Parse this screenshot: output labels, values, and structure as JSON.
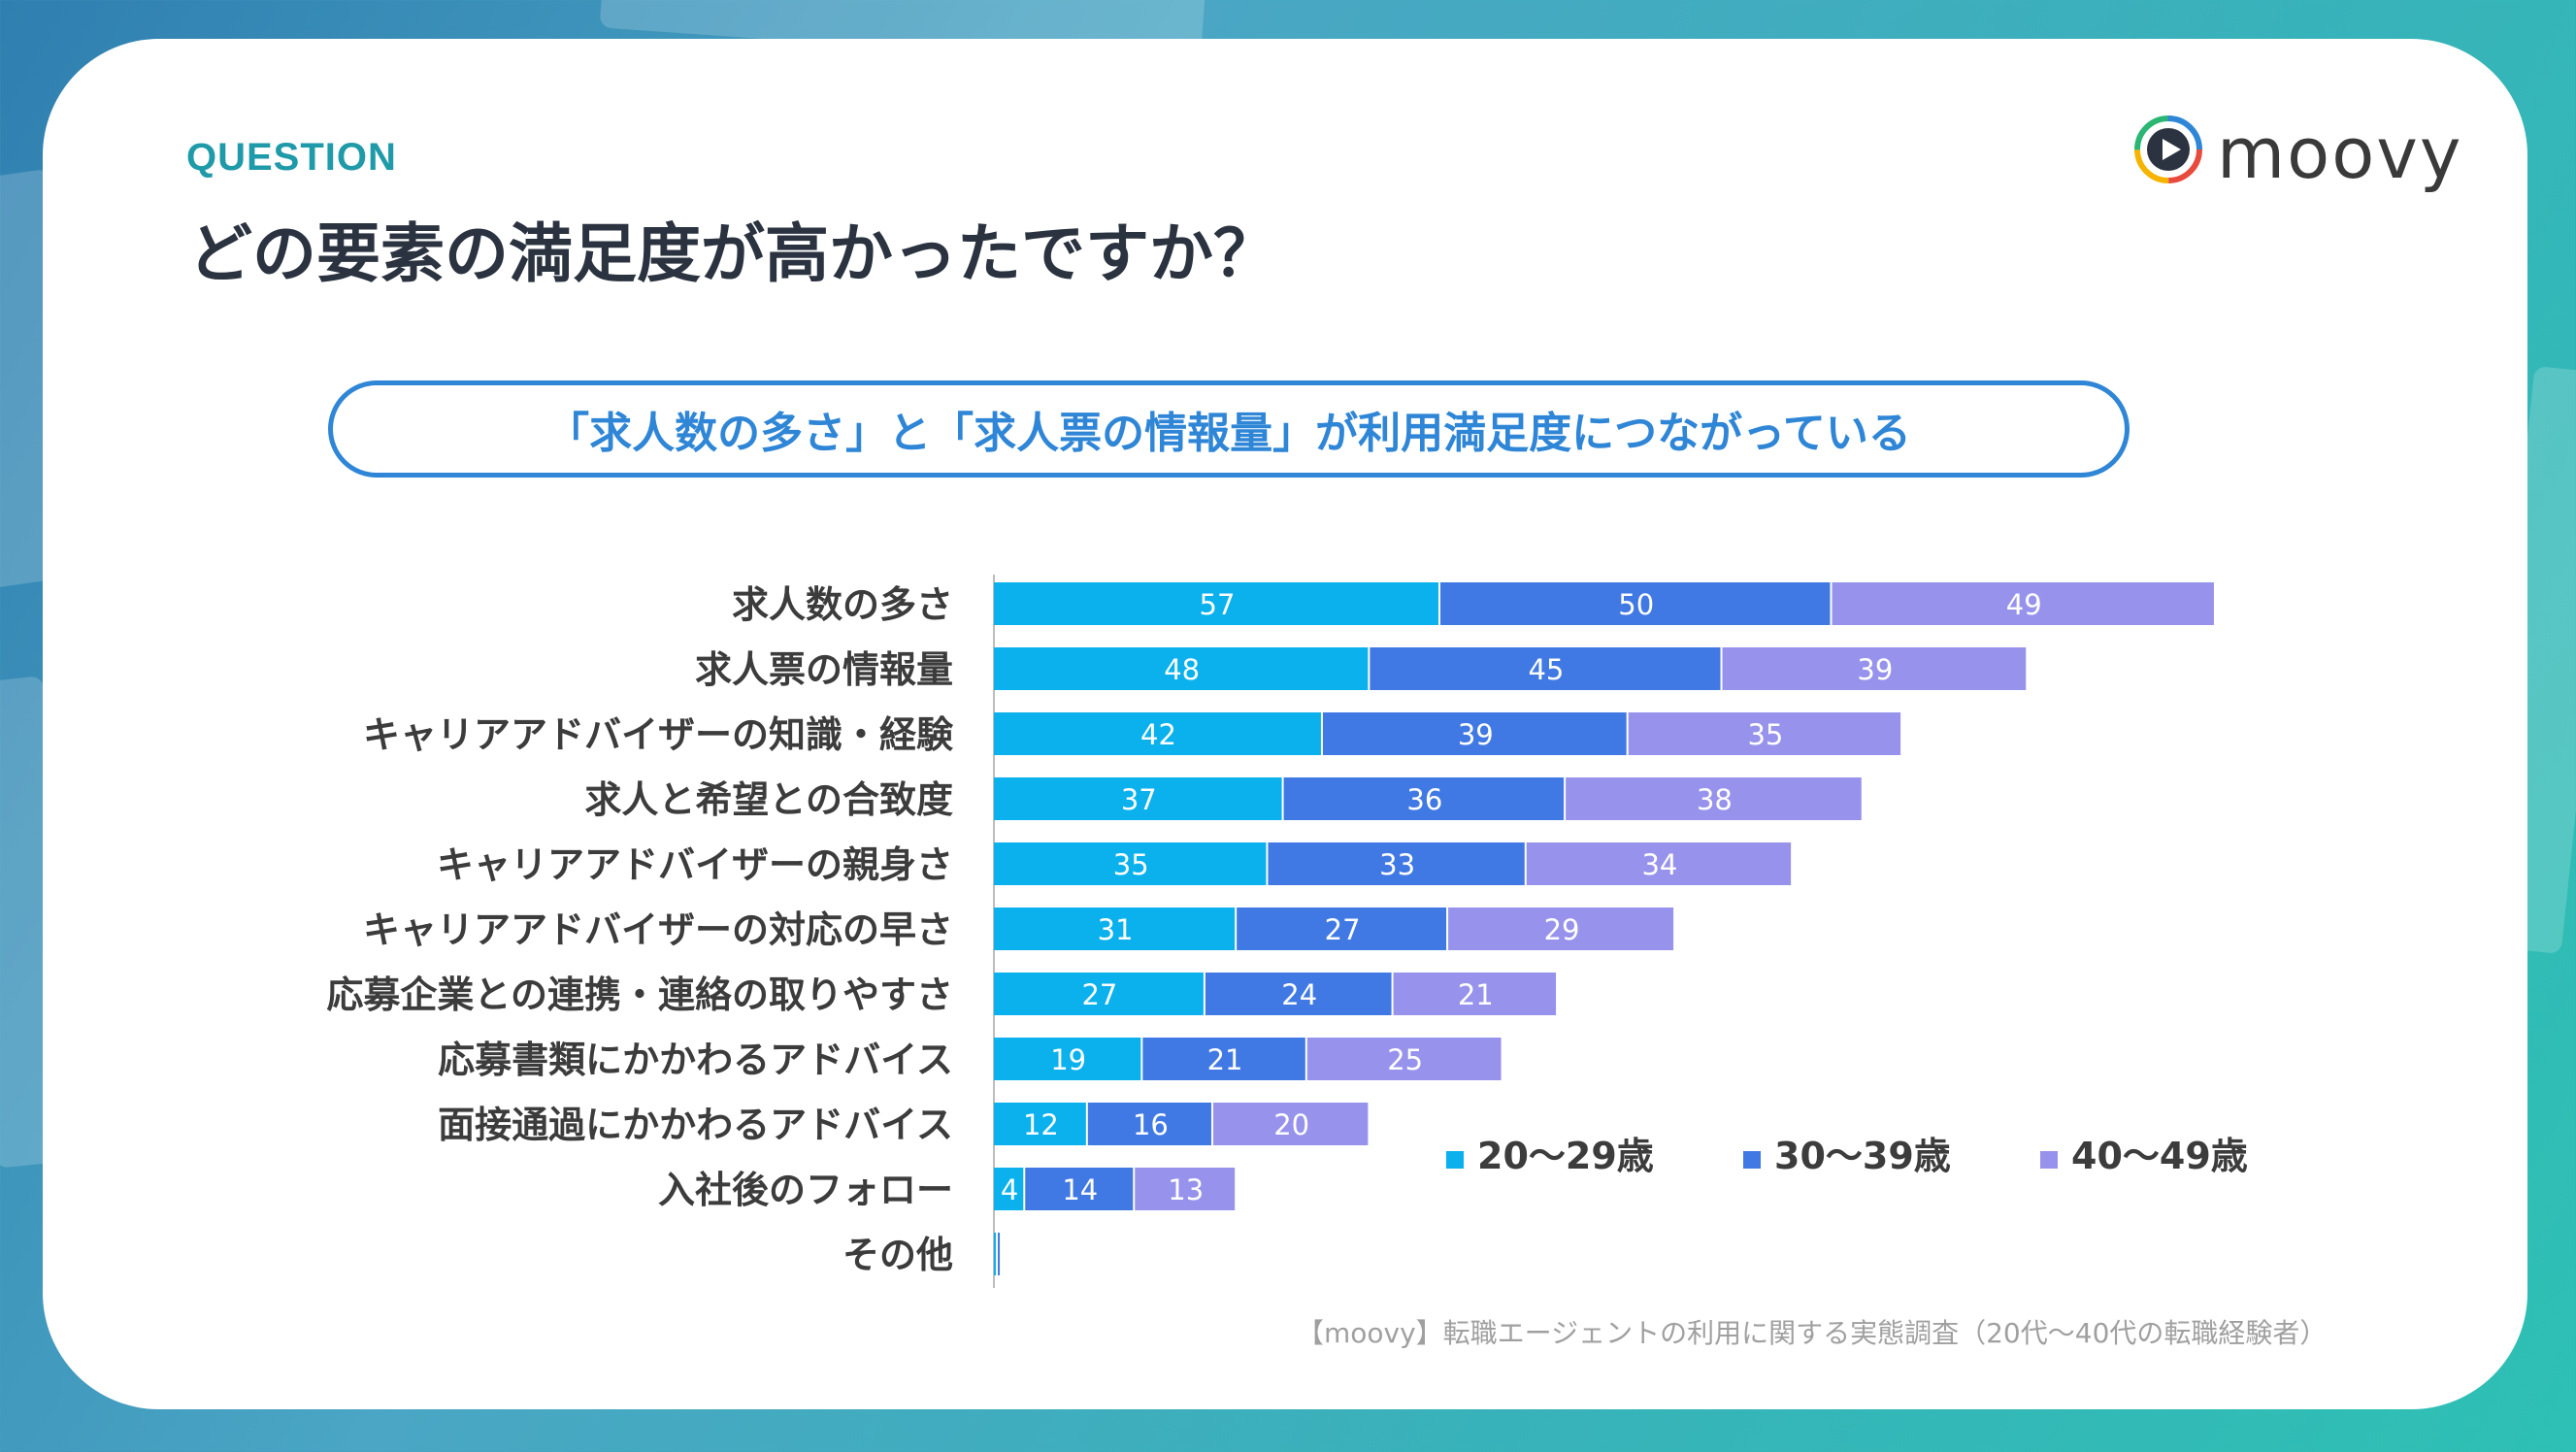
{
  "header": {
    "question_label": "QUESTION",
    "question_title": "どの要素の満足度が高かったですか？",
    "logo_text": "moovy"
  },
  "callout": "「求人数の多さ」と「求人票の情報量」が利用満足度につながっている",
  "footer": "【moovy】転職エージェントの利用に関する実態調査（20代〜40代の転職経験者）",
  "colors": {
    "series_20s": "#0ab1ec",
    "series_30s": "#4179e4",
    "series_40s": "#9793ec",
    "callout": "#2f86d6",
    "question_label": "#1f9aa9"
  },
  "chart_data": {
    "type": "bar",
    "orientation": "horizontal",
    "stacked": true,
    "categories": [
      "求人数の多さ",
      "求人票の情報量",
      "キャリアアドバイザーの知識・経験",
      "求人と希望との合致度",
      "キャリアアドバイザーの親身さ",
      "キャリアアドバイザーの対応の早さ",
      "応募企業との連携・連絡の取りやすさ",
      "応募書類にかかわるアドバイス",
      "面接通過にかかわるアドバイス",
      "入社後のフォロー",
      "その他"
    ],
    "series": [
      {
        "name": "20〜29歳",
        "values": [
          57,
          48,
          42,
          37,
          35,
          31,
          27,
          19,
          12,
          4,
          0.5
        ]
      },
      {
        "name": "30〜39歳",
        "values": [
          50,
          45,
          39,
          36,
          33,
          27,
          24,
          21,
          16,
          14,
          0.5
        ]
      },
      {
        "name": "40〜49歳",
        "values": [
          49,
          39,
          35,
          38,
          34,
          29,
          21,
          25,
          20,
          13,
          0
        ]
      }
    ],
    "data_labels_shown": true,
    "legend_position": "lower-right",
    "grid": false
  }
}
